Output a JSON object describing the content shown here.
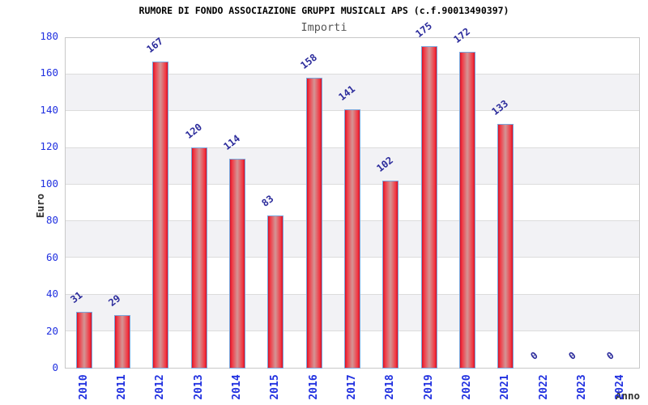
{
  "chart_data": {
    "type": "bar",
    "title": "RUMORE DI FONDO ASSOCIAZIONE GRUPPI MUSICALI APS (c.f.90013490397)",
    "subtitle": "Importi",
    "xlabel": "Anno",
    "ylabel": "Euro",
    "categories": [
      "2010",
      "2011",
      "2012",
      "2013",
      "2014",
      "2015",
      "2016",
      "2017",
      "2018",
      "2019",
      "2020",
      "2021",
      "2022",
      "2023",
      "2024"
    ],
    "values": [
      31,
      29,
      167,
      120,
      114,
      83,
      158,
      141,
      102,
      175,
      172,
      133,
      0,
      0,
      0
    ],
    "ylim": [
      0,
      180
    ],
    "yticks": [
      0,
      20,
      40,
      60,
      80,
      100,
      120,
      140,
      160,
      180
    ],
    "ytick_step": 20,
    "grid": true,
    "bands_alternating": true,
    "legend": "none",
    "colors": {
      "title": "#000000",
      "subtitle": "#555555",
      "tick_label": "#2030e0",
      "value_label": "#2c2c9c",
      "axis_title": "#333333",
      "bar_fill_edge": "#d31126",
      "bar_fill_bright": "#f23440",
      "bar_fill_center": "#d49595",
      "bar_border": "#7aa6db",
      "band_alt": "#f2f2f5",
      "gridline": "#dcdcdc",
      "plot_border": "#c8c8c8",
      "background": "#ffffff"
    }
  }
}
